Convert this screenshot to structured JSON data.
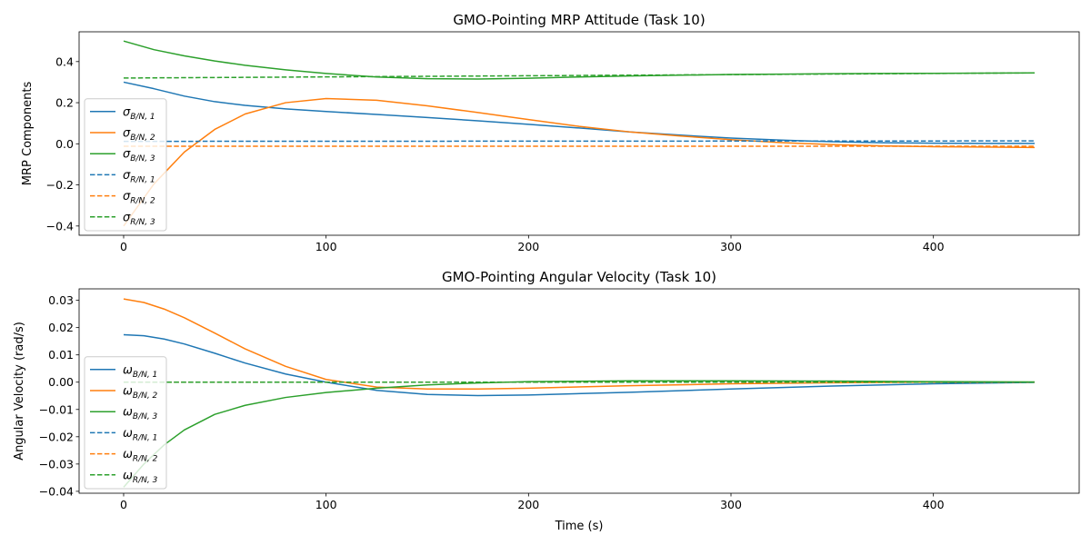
{
  "colors": {
    "c1": "#1f77b4",
    "c2": "#ff7f0e",
    "c3": "#2ca02c"
  },
  "chart_data": [
    {
      "type": "line",
      "title": "GMO-Pointing MRP Attitude (Task 10)",
      "xlabel": "",
      "ylabel": "MRP Components",
      "xlim": [
        -22,
        472
      ],
      "ylim": [
        -0.445,
        0.545
      ],
      "xticks": [
        0,
        100,
        200,
        300,
        400
      ],
      "yticks": [
        -0.4,
        -0.2,
        0.0,
        0.2,
        0.4
      ],
      "ytick_labels": [
        "−0.4",
        "−0.2",
        "0.0",
        "0.2",
        "0.4"
      ],
      "grid": false,
      "legend_position": "lower-left",
      "series": [
        {
          "name": "σ_B/N,1",
          "symbol": "σ",
          "subscript": "B/N, 1",
          "color": "#1f77b4",
          "dashed": false,
          "x": [
            0,
            15,
            30,
            45,
            60,
            80,
            100,
            125,
            150,
            175,
            200,
            225,
            250,
            275,
            300,
            325,
            350,
            375,
            400,
            425,
            450
          ],
          "y": [
            0.3,
            0.268,
            0.232,
            0.205,
            0.187,
            0.17,
            0.157,
            0.143,
            0.128,
            0.112,
            0.095,
            0.077,
            0.058,
            0.042,
            0.028,
            0.018,
            0.01,
            0.005,
            0.003,
            0.002,
            0.002
          ]
        },
        {
          "name": "σ_B/N,2",
          "symbol": "σ",
          "subscript": "B/N, 2",
          "color": "#ff7f0e",
          "dashed": false,
          "x": [
            0,
            15,
            30,
            45,
            60,
            80,
            100,
            125,
            150,
            175,
            200,
            225,
            250,
            275,
            300,
            325,
            350,
            375,
            400,
            425,
            450
          ],
          "y": [
            -0.4,
            -0.195,
            -0.04,
            0.07,
            0.145,
            0.2,
            0.22,
            0.212,
            0.185,
            0.152,
            0.118,
            0.085,
            0.058,
            0.038,
            0.02,
            0.006,
            -0.004,
            -0.01,
            -0.014,
            -0.016,
            -0.018
          ]
        },
        {
          "name": "σ_B/N,3",
          "symbol": "σ",
          "subscript": "B/N, 3",
          "color": "#2ca02c",
          "dashed": false,
          "x": [
            0,
            15,
            30,
            45,
            60,
            80,
            100,
            125,
            150,
            175,
            200,
            225,
            250,
            275,
            300,
            325,
            350,
            375,
            400,
            425,
            450
          ],
          "y": [
            0.5,
            0.458,
            0.428,
            0.403,
            0.382,
            0.36,
            0.342,
            0.325,
            0.317,
            0.315,
            0.319,
            0.325,
            0.33,
            0.334,
            0.337,
            0.339,
            0.341,
            0.342,
            0.343,
            0.344,
            0.345
          ]
        },
        {
          "name": "σ_R/N,1",
          "symbol": "σ",
          "subscript": "R/N, 1",
          "color": "#1f77b4",
          "dashed": true,
          "x": [
            0,
            450
          ],
          "y": [
            0.012,
            0.014
          ]
        },
        {
          "name": "σ_R/N,2",
          "symbol": "σ",
          "subscript": "R/N, 2",
          "color": "#ff7f0e",
          "dashed": true,
          "x": [
            0,
            450
          ],
          "y": [
            -0.012,
            -0.012
          ]
        },
        {
          "name": "σ_R/N,3",
          "symbol": "σ",
          "subscript": "R/N, 3",
          "color": "#2ca02c",
          "dashed": true,
          "x": [
            0,
            450
          ],
          "y": [
            0.32,
            0.345
          ]
        }
      ]
    },
    {
      "type": "line",
      "title": "GMO-Pointing Angular Velocity (Task 10)",
      "xlabel": "Time (s)",
      "ylabel": "Angular Velocity (rad/s)",
      "xlim": [
        -22,
        472
      ],
      "ylim": [
        -0.0407,
        0.0342
      ],
      "xticks": [
        0,
        100,
        200,
        300,
        400
      ],
      "yticks": [
        -0.04,
        -0.03,
        -0.02,
        -0.01,
        0.0,
        0.01,
        0.02,
        0.03
      ],
      "ytick_labels": [
        "−0.04",
        "−0.03",
        "−0.02",
        "−0.01",
        "0.00",
        "0.01",
        "0.02",
        "0.03"
      ],
      "grid": false,
      "legend_position": "lower-left",
      "series": [
        {
          "name": "ω_B/N,1",
          "symbol": "ω",
          "subscript": "B/N, 1",
          "color": "#1f77b4",
          "dashed": false,
          "x": [
            0,
            10,
            20,
            30,
            45,
            60,
            80,
            100,
            125,
            150,
            175,
            200,
            250,
            300,
            350,
            400,
            450
          ],
          "y": [
            0.0174,
            0.017,
            0.0158,
            0.014,
            0.0106,
            0.007,
            0.003,
            0.0,
            -0.003,
            -0.0045,
            -0.0049,
            -0.0047,
            -0.0037,
            -0.0025,
            -0.0014,
            -0.0006,
            -0.0001
          ]
        },
        {
          "name": "ω_B/N,2",
          "symbol": "ω",
          "subscript": "B/N, 2",
          "color": "#ff7f0e",
          "dashed": false,
          "x": [
            0,
            10,
            20,
            30,
            45,
            60,
            80,
            100,
            125,
            150,
            175,
            200,
            250,
            300,
            350,
            400,
            450
          ],
          "y": [
            0.0305,
            0.0292,
            0.0268,
            0.0236,
            0.018,
            0.0122,
            0.0058,
            0.001,
            -0.0018,
            -0.0025,
            -0.0025,
            -0.0022,
            -0.0013,
            -0.0006,
            -0.0002,
            0.0,
            0.0
          ]
        },
        {
          "name": "ω_B/N,3",
          "symbol": "ω",
          "subscript": "B/N, 3",
          "color": "#2ca02c",
          "dashed": false,
          "x": [
            0,
            10,
            20,
            30,
            45,
            60,
            80,
            100,
            125,
            150,
            175,
            200,
            250,
            300,
            350,
            400,
            450
          ],
          "y": [
            -0.0385,
            -0.03,
            -0.023,
            -0.0175,
            -0.0118,
            -0.0085,
            -0.0056,
            -0.0038,
            -0.0022,
            -0.001,
            -0.0003,
            0.0002,
            0.0005,
            0.0005,
            0.0004,
            0.0002,
            0.0001
          ]
        },
        {
          "name": "ω_R/N,1",
          "symbol": "ω",
          "subscript": "R/N, 1",
          "color": "#1f77b4",
          "dashed": true,
          "x": [
            0,
            450
          ],
          "y": [
            0.0,
            0.0
          ]
        },
        {
          "name": "ω_R/N,2",
          "symbol": "ω",
          "subscript": "R/N, 2",
          "color": "#ff7f0e",
          "dashed": true,
          "x": [
            0,
            450
          ],
          "y": [
            0.0,
            0.0
          ]
        },
        {
          "name": "ω_R/N,3",
          "symbol": "ω",
          "subscript": "R/N, 3",
          "color": "#2ca02c",
          "dashed": true,
          "x": [
            0,
            450
          ],
          "y": [
            0.0,
            0.0
          ]
        }
      ]
    }
  ]
}
